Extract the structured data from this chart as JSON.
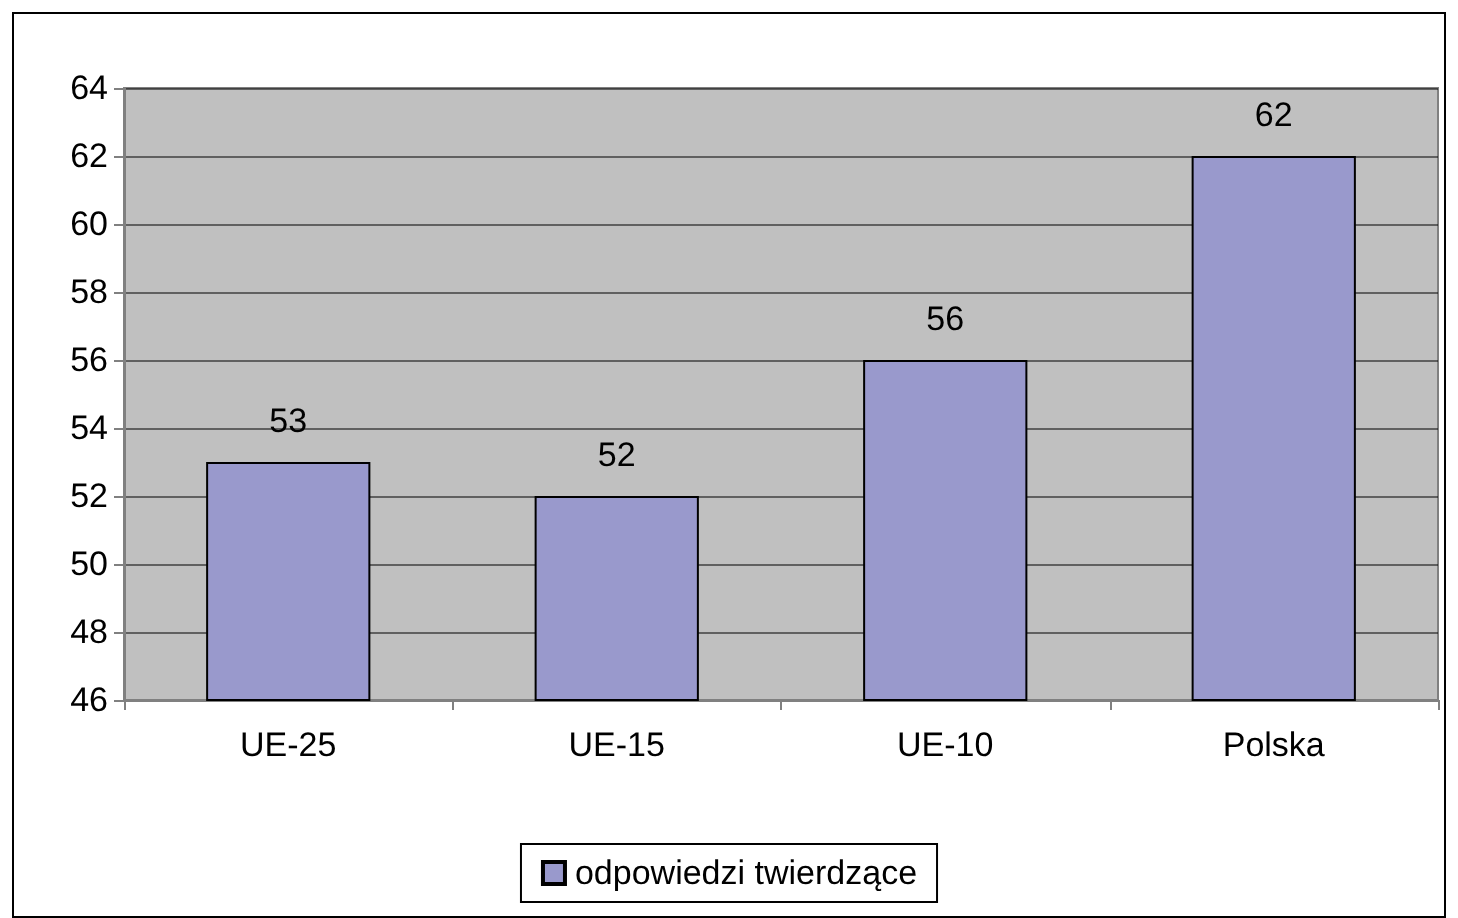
{
  "chart_data": {
    "type": "bar",
    "categories": [
      "UE-25",
      "UE-15",
      "UE-10",
      "Polska"
    ],
    "series": [
      {
        "name": "odpowiedzi twierdzące",
        "color": "#9999cc",
        "values": [
          53,
          52,
          56,
          62
        ]
      }
    ],
    "ylim": [
      46,
      64
    ],
    "yticks": [
      46,
      48,
      50,
      52,
      54,
      56,
      58,
      60,
      62,
      64
    ],
    "grid": "y",
    "data_labels": true,
    "legend": "bottom"
  }
}
